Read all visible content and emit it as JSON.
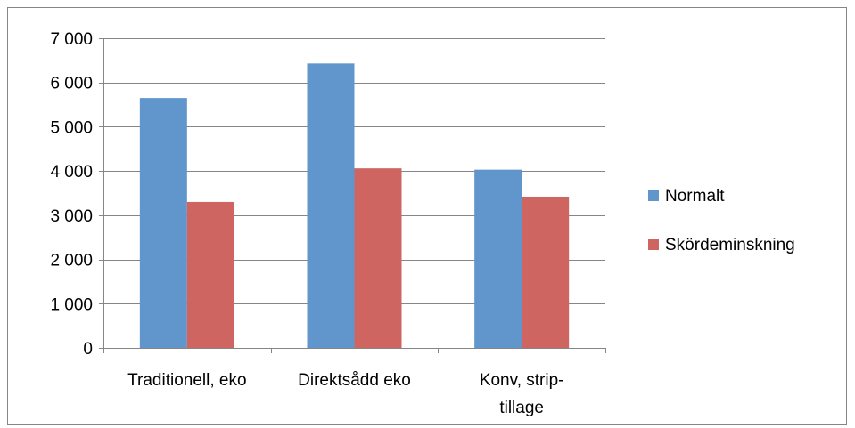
{
  "chart_data": {
    "type": "bar",
    "categories": [
      [
        "Traditionell, eko"
      ],
      [
        "Direktsådd eko"
      ],
      [
        "Konv, strip-",
        "tillage"
      ]
    ],
    "series": [
      {
        "name": "Normalt",
        "color": "#6096CC",
        "values": [
          5650,
          6430,
          4030
        ]
      },
      {
        "name": "Skördeminskning",
        "color": "#CE6560",
        "values": [
          3300,
          4060,
          3420
        ]
      }
    ],
    "ylim": [
      0,
      7000
    ],
    "yticks": [
      0,
      1000,
      2000,
      3000,
      4000,
      5000,
      6000,
      7000
    ],
    "ytick_labels": [
      "0",
      "1 000",
      "2 000",
      "3 000",
      "4 000",
      "5 000",
      "6 000",
      "7 000"
    ],
    "grid": true,
    "legend_position": "right"
  }
}
